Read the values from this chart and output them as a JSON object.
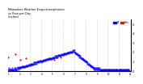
{
  "title": "Milwaukee Weather Evapotranspiration\nvs Rain per Day\n(Inches)",
  "legend_labels": [
    "ET",
    "Rain"
  ],
  "legend_colors": [
    "#0000ff",
    "#ff0000"
  ],
  "background_color": "#ffffff",
  "plot_bg": "#ffffff",
  "ylim": [
    0,
    0.55
  ],
  "et_color": "#0000ff",
  "rain_color": "#ff0000",
  "grid_color": "#aaaaaa",
  "et_data": [
    0.02,
    0.01,
    0.02,
    0.03,
    0.02,
    0.01,
    0.02,
    0.02,
    0.01,
    0.02,
    0.03,
    0.01,
    0.02,
    0.01,
    0.02,
    0.02,
    0.01,
    0.02,
    0.03,
    0.02,
    0.03,
    0.02,
    0.01,
    0.02,
    0.03,
    0.02,
    0.04,
    0.03,
    0.02,
    0.03,
    0.03,
    0.04,
    0.03,
    0.04,
    0.03,
    0.04,
    0.03,
    0.04,
    0.05,
    0.04,
    0.05,
    0.04,
    0.05,
    0.04,
    0.05,
    0.04,
    0.05,
    0.04,
    0.05,
    0.06,
    0.05,
    0.06,
    0.05,
    0.06,
    0.05,
    0.06,
    0.07,
    0.06,
    0.07,
    0.06,
    0.07,
    0.06,
    0.07,
    0.08,
    0.07,
    0.08,
    0.07,
    0.08,
    0.07,
    0.08,
    0.09,
    0.08,
    0.09,
    0.08,
    0.09,
    0.08,
    0.09,
    0.08,
    0.09,
    0.1,
    0.09,
    0.1,
    0.09,
    0.1,
    0.09,
    0.1,
    0.11,
    0.1,
    0.11,
    0.1,
    0.09,
    0.1,
    0.11,
    0.1,
    0.11,
    0.1,
    0.11,
    0.12,
    0.11,
    0.12,
    0.11,
    0.12,
    0.11,
    0.12,
    0.13,
    0.12,
    0.13,
    0.12,
    0.13,
    0.12,
    0.13,
    0.14,
    0.13,
    0.14,
    0.13,
    0.14,
    0.13,
    0.14,
    0.13,
    0.14,
    0.13,
    0.14,
    0.15,
    0.14,
    0.15,
    0.14,
    0.15,
    0.14,
    0.15,
    0.16,
    0.15,
    0.16,
    0.15,
    0.16,
    0.15,
    0.16,
    0.15,
    0.16,
    0.17,
    0.16,
    0.17,
    0.16,
    0.17,
    0.16,
    0.17,
    0.16,
    0.17,
    0.18,
    0.17,
    0.18,
    0.17,
    0.18,
    0.17,
    0.18,
    0.19,
    0.18,
    0.19,
    0.18,
    0.19,
    0.18,
    0.19,
    0.2,
    0.19,
    0.2,
    0.19,
    0.2,
    0.19,
    0.2,
    0.21,
    0.2,
    0.21,
    0.2,
    0.21,
    0.2,
    0.21,
    0.2,
    0.21,
    0.22,
    0.21,
    0.22,
    0.21,
    0.22,
    0.21,
    0.2,
    0.19,
    0.2,
    0.19,
    0.18,
    0.19,
    0.18,
    0.17,
    0.18,
    0.17,
    0.16,
    0.17,
    0.16,
    0.15,
    0.16,
    0.15,
    0.14,
    0.15,
    0.14,
    0.13,
    0.14,
    0.13,
    0.12,
    0.13,
    0.12,
    0.11,
    0.12,
    0.11,
    0.1,
    0.11,
    0.1,
    0.09,
    0.1,
    0.09,
    0.08,
    0.09,
    0.08,
    0.07,
    0.08,
    0.07,
    0.06,
    0.07,
    0.06,
    0.05,
    0.06,
    0.05,
    0.04,
    0.05,
    0.04,
    0.03,
    0.04,
    0.03,
    0.02,
    0.03,
    0.02,
    0.03,
    0.02,
    0.03,
    0.02,
    0.03,
    0.02,
    0.03,
    0.02,
    0.03,
    0.02,
    0.03,
    0.02,
    0.03,
    0.02,
    0.01,
    0.02,
    0.01,
    0.02,
    0.01,
    0.02,
    0.01,
    0.02,
    0.01,
    0.02,
    0.01,
    0.02,
    0.01,
    0.02,
    0.01,
    0.02,
    0.01,
    0.02,
    0.01,
    0.02,
    0.02,
    0.01,
    0.02,
    0.01,
    0.02,
    0.01,
    0.02,
    0.01,
    0.02,
    0.01,
    0.02,
    0.01,
    0.02,
    0.01,
    0.02,
    0.01,
    0.02,
    0.01,
    0.02,
    0.01,
    0.02,
    0.01,
    0.02,
    0.01,
    0.02,
    0.01,
    0.02,
    0.01,
    0.02,
    0.01,
    0.01,
    0.02,
    0.01,
    0.02,
    0.01,
    0.02,
    0.01,
    0.02,
    0.01,
    0.02,
    0.01,
    0.02,
    0.01,
    0.02,
    0.01,
    0.02,
    0.01,
    0.02,
    0.01,
    0.02,
    0.01,
    0.02,
    0.01,
    0.02,
    0.01,
    0.02,
    0.01,
    0.02,
    0.01,
    0.02,
    0.01
  ],
  "rain_data": [
    0.15,
    0.0,
    0.0,
    0.0,
    0.0,
    0.0,
    0.0,
    0.0,
    0.0,
    0.0,
    0.0,
    0.0,
    0.0,
    0.0,
    0.0,
    0.0,
    0.0,
    0.0,
    0.0,
    0.0,
    0.18,
    0.0,
    0.0,
    0.0,
    0.0,
    0.0,
    0.0,
    0.0,
    0.0,
    0.0,
    0.0,
    0.0,
    0.0,
    0.12,
    0.0,
    0.0,
    0.0,
    0.0,
    0.0,
    0.0,
    0.0,
    0.0,
    0.0,
    0.0,
    0.0,
    0.0,
    0.0,
    0.0,
    0.0,
    0.14,
    0.0,
    0.0,
    0.0,
    0.0,
    0.0,
    0.0,
    0.0,
    0.0,
    0.0,
    0.0,
    0.0,
    0.0,
    0.0,
    0.0,
    0.0,
    0.0,
    0.0,
    0.0,
    0.0,
    0.0,
    0.0,
    0.0,
    0.0,
    0.0,
    0.0,
    0.0,
    0.0,
    0.0,
    0.0,
    0.0,
    0.0,
    0.0,
    0.0,
    0.0,
    0.0,
    0.0,
    0.0,
    0.0,
    0.0,
    0.0,
    0.0,
    0.0,
    0.0,
    0.0,
    0.0,
    0.0,
    0.0,
    0.0,
    0.0,
    0.0,
    0.0,
    0.0,
    0.0,
    0.0,
    0.0,
    0.0,
    0.0,
    0.0,
    0.0,
    0.0,
    0.0,
    0.0,
    0.0,
    0.0,
    0.0,
    0.0,
    0.0,
    0.0,
    0.0,
    0.0,
    0.0,
    0.0,
    0.0,
    0.0,
    0.0,
    0.0,
    0.0,
    0.12,
    0.0,
    0.0,
    0.0,
    0.0,
    0.0,
    0.0,
    0.0,
    0.0,
    0.0,
    0.0,
    0.0,
    0.0,
    0.0,
    0.0,
    0.0,
    0.0,
    0.15,
    0.0,
    0.0,
    0.0,
    0.0,
    0.0,
    0.0,
    0.0,
    0.0,
    0.0,
    0.0,
    0.0,
    0.0,
    0.0,
    0.0,
    0.0,
    0.0,
    0.0,
    0.0,
    0.0,
    0.0,
    0.0,
    0.0,
    0.0,
    0.0,
    0.0,
    0.0,
    0.0,
    0.0,
    0.0,
    0.0,
    0.0,
    0.0,
    0.0,
    0.0,
    0.0,
    0.0,
    0.0,
    0.0,
    0.0,
    0.0,
    0.0,
    0.0,
    0.0,
    0.0,
    0.0,
    0.0,
    0.0,
    0.0,
    0.0,
    0.0,
    0.0,
    0.0,
    0.0,
    0.0,
    0.0,
    0.0,
    0.0,
    0.0,
    0.0,
    0.0,
    0.0,
    0.0,
    0.0,
    0.0,
    0.0,
    0.0,
    0.0,
    0.0,
    0.0,
    0.0,
    0.0,
    0.0,
    0.0,
    0.0,
    0.0,
    0.0,
    0.0,
    0.0,
    0.0,
    0.0,
    0.0,
    0.0,
    0.0,
    0.0,
    0.0,
    0.0,
    0.0,
    0.0,
    0.0,
    0.0,
    0.0,
    0.0,
    0.0,
    0.0,
    0.0,
    0.0,
    0.0,
    0.0,
    0.0,
    0.0,
    0.0,
    0.0,
    0.0,
    0.0,
    0.0,
    0.0,
    0.0,
    0.0,
    0.0,
    0.0,
    0.0,
    0.0,
    0.0,
    0.0,
    0.0,
    0.0,
    0.0,
    0.0,
    0.0,
    0.0,
    0.0,
    0.0,
    0.0,
    0.0,
    0.0,
    0.0,
    0.0,
    0.0,
    0.0,
    0.0,
    0.0,
    0.0,
    0.0,
    0.0,
    0.0,
    0.0,
    0.0,
    0.0,
    0.0,
    0.0,
    0.0,
    0.0,
    0.0,
    0.0,
    0.0,
    0.0,
    0.0,
    0.0,
    0.0,
    0.0,
    0.0,
    0.0,
    0.0,
    0.0,
    0.0,
    0.0,
    0.0,
    0.0,
    0.0,
    0.0,
    0.0,
    0.0,
    0.0,
    0.0,
    0.0,
    0.0,
    0.0,
    0.0,
    0.0,
    0.0,
    0.0,
    0.0,
    0.0,
    0.0,
    0.0,
    0.0,
    0.0,
    0.0,
    0.0,
    0.0,
    0.0,
    0.0,
    0.0,
    0.0,
    0.0,
    0.0,
    0.0,
    0.0
  ],
  "month_starts": [
    0,
    31,
    59,
    90,
    120,
    151,
    181,
    212,
    243,
    273,
    304,
    334
  ],
  "month_labels": [
    "1",
    "2",
    "3",
    "4",
    "5",
    "6",
    "7",
    "8",
    "9",
    "10",
    "11",
    "12"
  ],
  "ytick_vals": [
    0.0,
    0.1,
    0.2,
    0.3,
    0.4,
    0.5
  ],
  "ytick_labels": [
    ".0",
    ".1",
    ".2",
    ".3",
    ".4",
    ".5"
  ]
}
